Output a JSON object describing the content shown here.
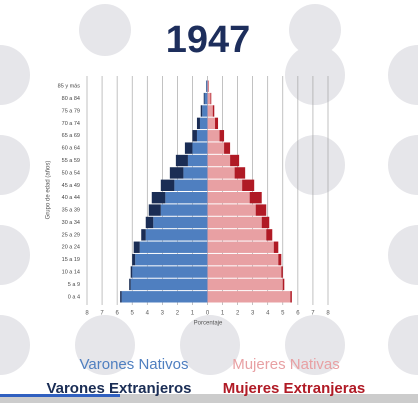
{
  "chart_data": {
    "type": "pyramid",
    "title": "1947",
    "x_label": "Porcentaje",
    "y_label": "Grupo de edad (años)",
    "categories": [
      "0 a 4",
      "5 a 9",
      "10 a 14",
      "15 a 19",
      "20 a 24",
      "25 a 29",
      "30 a 34",
      "35 a 39",
      "40 a 44",
      "45 a 49",
      "50 a 54",
      "55 a 59",
      "60 a 64",
      "65 a 69",
      "70 a 74",
      "75 a 79",
      "80 a 84",
      "85 y más"
    ],
    "series": [
      {
        "name": "Varones Nativos",
        "color": "#4f7fc0",
        "values": [
          -5.7,
          -5.1,
          -5.0,
          -4.8,
          -4.5,
          -4.1,
          -3.6,
          -3.1,
          -2.8,
          -2.2,
          -1.6,
          -1.3,
          -1.0,
          -0.7,
          -0.5,
          -0.35,
          -0.2,
          -0.08
        ]
      },
      {
        "name": "Mujeres Nativas",
        "color": "#e8a0a3",
        "values": [
          5.5,
          5.0,
          4.9,
          4.7,
          4.4,
          3.9,
          3.6,
          3.2,
          2.8,
          2.3,
          1.8,
          1.5,
          1.1,
          0.8,
          0.5,
          0.35,
          0.2,
          0.08
        ]
      },
      {
        "name": "Varones Extranjeros",
        "color": "#1a2d55",
        "values": [
          -0.1,
          -0.1,
          -0.1,
          -0.2,
          -0.4,
          -0.3,
          -0.5,
          -0.8,
          -0.9,
          -0.9,
          -0.9,
          -0.8,
          -0.5,
          -0.3,
          -0.2,
          -0.1,
          -0.05,
          -0.02
        ]
      },
      {
        "name": "Mujeres Extranjeras",
        "color": "#b01a25",
        "values": [
          0.1,
          0.1,
          0.1,
          0.2,
          0.3,
          0.4,
          0.5,
          0.7,
          0.8,
          0.8,
          0.7,
          0.6,
          0.4,
          0.3,
          0.2,
          0.1,
          0.05,
          0.02
        ]
      }
    ],
    "xlim": [
      -8,
      8
    ],
    "xticks": [
      {
        "value": -8,
        "label": "8"
      },
      {
        "value": -7,
        "label": "7"
      },
      {
        "value": -6,
        "label": "6"
      },
      {
        "value": -5,
        "label": "5"
      },
      {
        "value": -4,
        "label": "4"
      },
      {
        "value": -3,
        "label": "3"
      },
      {
        "value": -2,
        "label": "2"
      },
      {
        "value": -1,
        "label": "1"
      },
      0,
      1,
      2,
      3,
      4,
      5,
      6,
      7,
      8
    ],
    "grid": true
  }
}
